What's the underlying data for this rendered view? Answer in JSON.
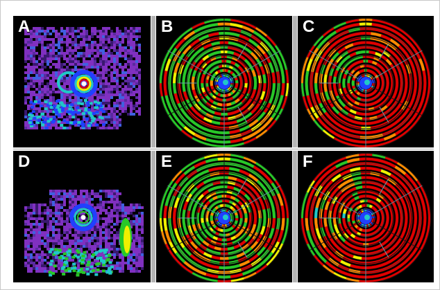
{
  "figure": {
    "panels": [
      {
        "id": "A",
        "label": "A",
        "kind": "scan",
        "row": 0,
        "col": 0
      },
      {
        "id": "B",
        "label": "B",
        "kind": "polar",
        "row": 0,
        "col": 1,
        "red_weight": 0.32,
        "green_weight": 0.55
      },
      {
        "id": "C",
        "label": "C",
        "kind": "polar",
        "row": 0,
        "col": 2,
        "red_weight": 0.7,
        "green_weight": 0.3
      },
      {
        "id": "D",
        "label": "D",
        "kind": "scan",
        "row": 1,
        "col": 0
      },
      {
        "id": "E",
        "label": "E",
        "kind": "polar",
        "row": 1,
        "col": 1,
        "red_weight": 0.28,
        "green_weight": 0.6
      },
      {
        "id": "F",
        "label": "F",
        "kind": "polar",
        "row": 1,
        "col": 2,
        "red_weight": 0.78,
        "green_weight": 0.18
      }
    ],
    "colors": {
      "red": "#e00000",
      "orange": "#ff8c00",
      "yellow": "#f0f000",
      "green": "#28c828",
      "cyan": "#20c8c8",
      "blue": "#2040ff",
      "purple": "#8030c0",
      "background": "#000000"
    }
  }
}
